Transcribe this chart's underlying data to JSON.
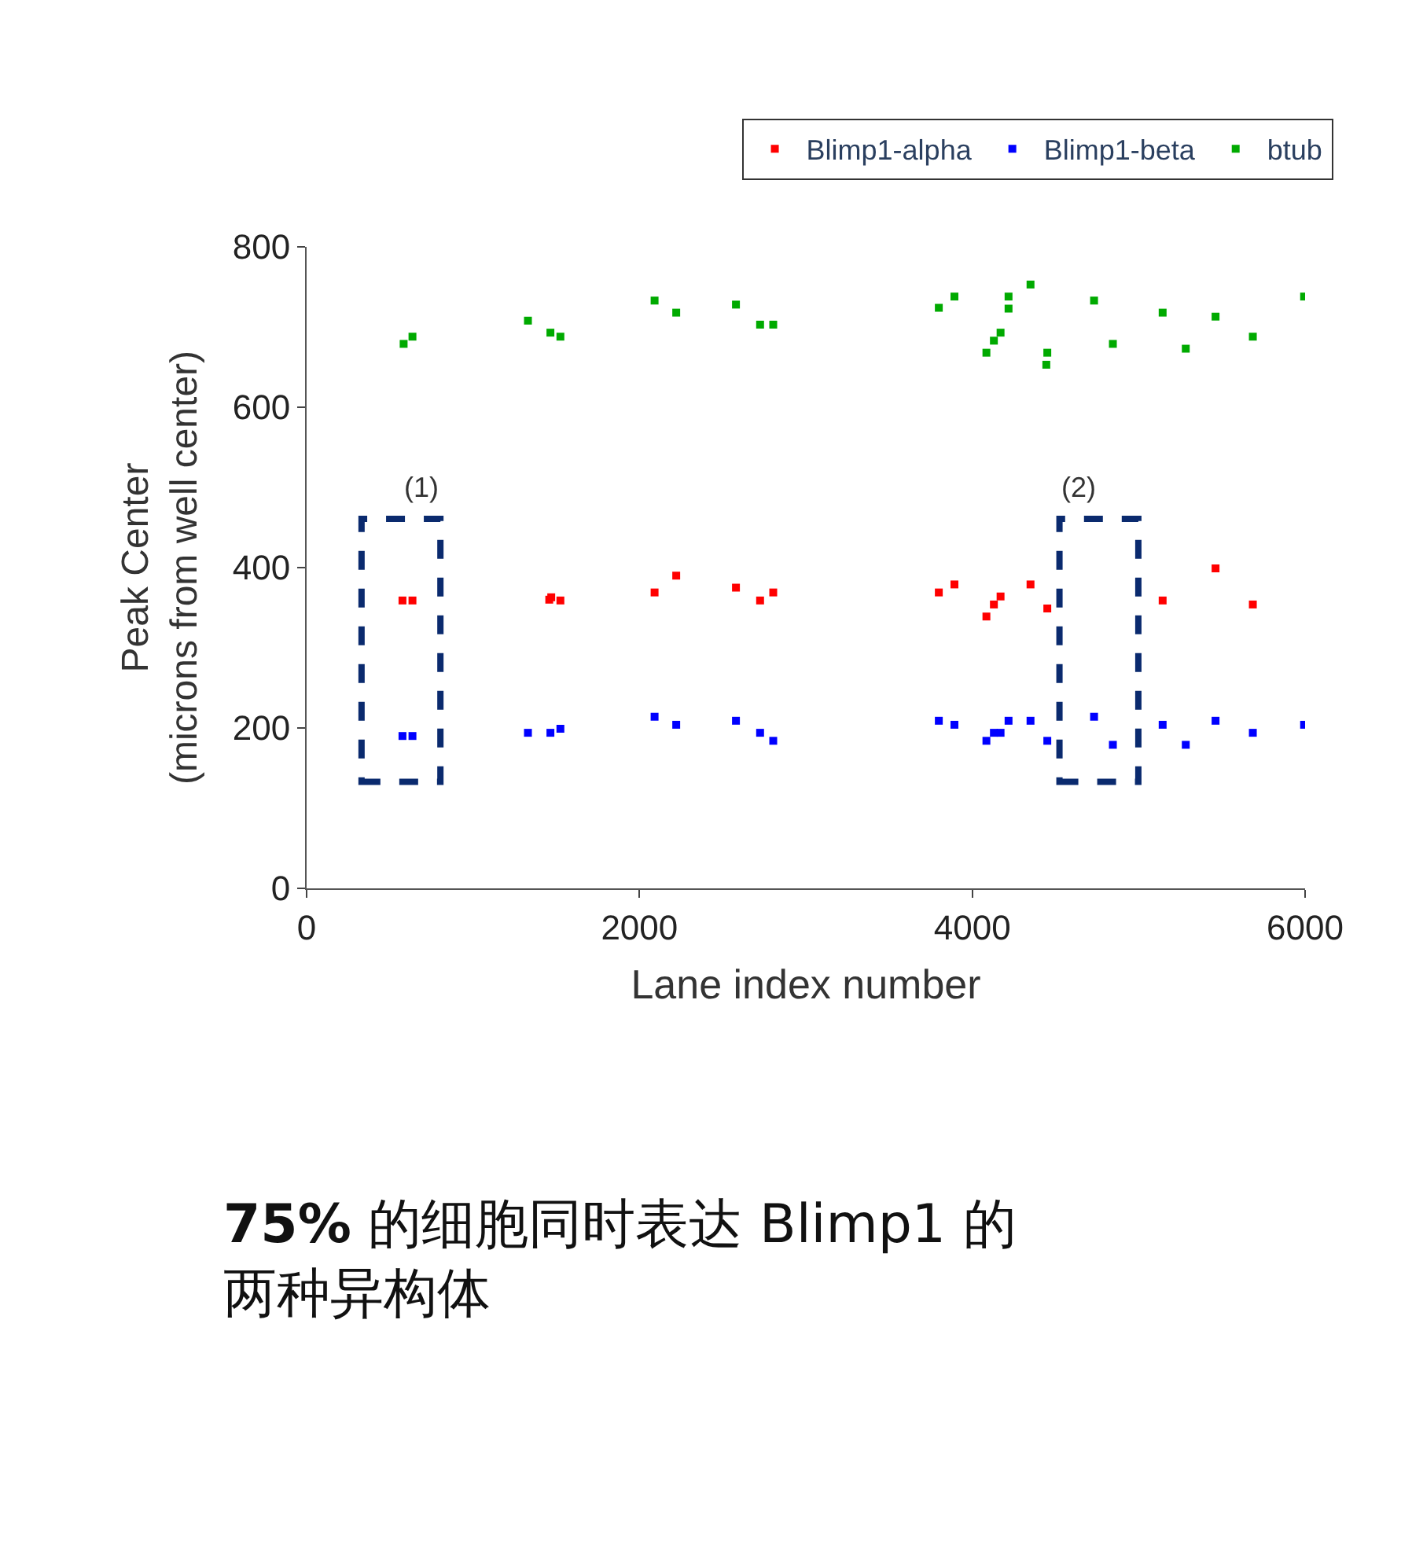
{
  "chart_data": {
    "type": "scatter",
    "xlabel": "Lane index number",
    "ylabel": "Peak Center\n(microns from well center)",
    "xlim": [
      0,
      6000
    ],
    "xticks": [
      0,
      2000,
      4000,
      6000
    ],
    "ylim": [
      0,
      800
    ],
    "yticks": [
      0,
      200,
      400,
      600,
      800
    ],
    "legend": "top right",
    "marker": "square",
    "series": [
      {
        "name": "Blimp1-alpha",
        "color": "#ff0000",
        "x": [
          576,
          636,
          1458,
          1470,
          1525,
          2091,
          2221,
          2580,
          2725,
          2804,
          3799,
          3893,
          4085,
          4130,
          4170,
          4350,
          4451,
          5144,
          5462,
          5686
        ],
        "values": [
          359,
          359,
          360,
          363,
          359,
          369,
          390,
          375,
          359,
          369,
          369,
          379,
          339,
          354,
          364,
          379,
          349,
          359,
          399,
          354
        ]
      },
      {
        "name": "Blimp1-beta",
        "color": "#0000ff",
        "x": [
          576,
          636,
          1330,
          1465,
          1525,
          2091,
          2221,
          2580,
          2725,
          2804,
          3799,
          3893,
          4085,
          4130,
          4170,
          4218,
          4350,
          4451,
          4732,
          4845,
          5144,
          5283,
          5462,
          5686,
          5994
        ],
        "values": [
          190,
          190,
          194,
          194,
          199,
          214,
          204,
          209,
          194,
          184,
          209,
          204,
          184,
          194,
          194,
          209,
          209,
          184,
          214,
          179,
          204,
          179,
          209,
          194,
          204
        ]
      },
      {
        "name": "btub",
        "color": "#00aa00",
        "x": [
          583,
          636,
          1330,
          1465,
          1525,
          2091,
          2221,
          2580,
          2725,
          2804,
          3799,
          3893,
          4085,
          4130,
          4170,
          4218,
          4218,
          4350,
          4451,
          4445,
          4732,
          4845,
          5144,
          5283,
          5462,
          5686,
          5994
        ],
        "values": [
          679,
          688,
          708,
          693,
          688,
          733,
          718,
          728,
          703,
          703,
          724,
          738,
          668,
          683,
          693,
          723,
          738,
          753,
          668,
          653,
          733,
          679,
          718,
          673,
          713,
          688,
          738
        ]
      }
    ],
    "annotations": [
      "(1)",
      "(2)",
      "75% 的细胞同时表达 Blimp1 的两种异构体"
    ]
  }
}
